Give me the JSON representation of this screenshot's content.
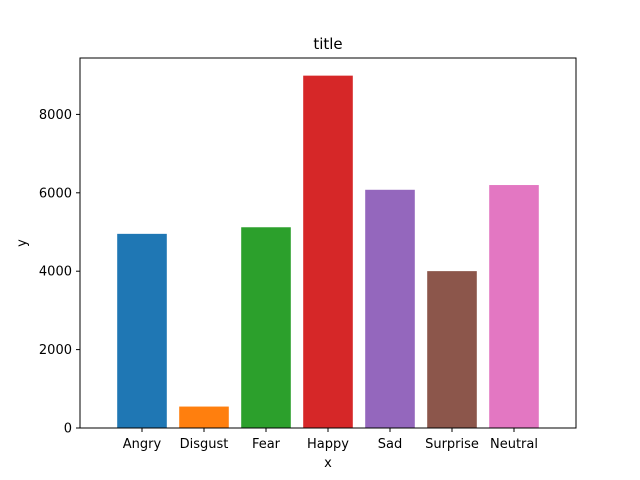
{
  "chart_data": {
    "type": "bar",
    "title": "title",
    "xlabel": "x",
    "ylabel": "y",
    "categories": [
      "Angry",
      "Disgust",
      "Fear",
      "Happy",
      "Sad",
      "Surprise",
      "Neutral"
    ],
    "values": [
      4953,
      547,
      5121,
      8989,
      6077,
      4002,
      6198
    ],
    "colors": [
      "#1f77b4",
      "#ff7f0e",
      "#2ca02c",
      "#d62728",
      "#9467bd",
      "#8c564b",
      "#e377c2"
    ],
    "ylim": [
      0,
      9439
    ],
    "yticks": [
      0,
      2000,
      4000,
      6000,
      8000
    ],
    "ytick_labels": [
      "0",
      "2000",
      "4000",
      "6000",
      "8000"
    ],
    "grid": false,
    "legend": false
  }
}
